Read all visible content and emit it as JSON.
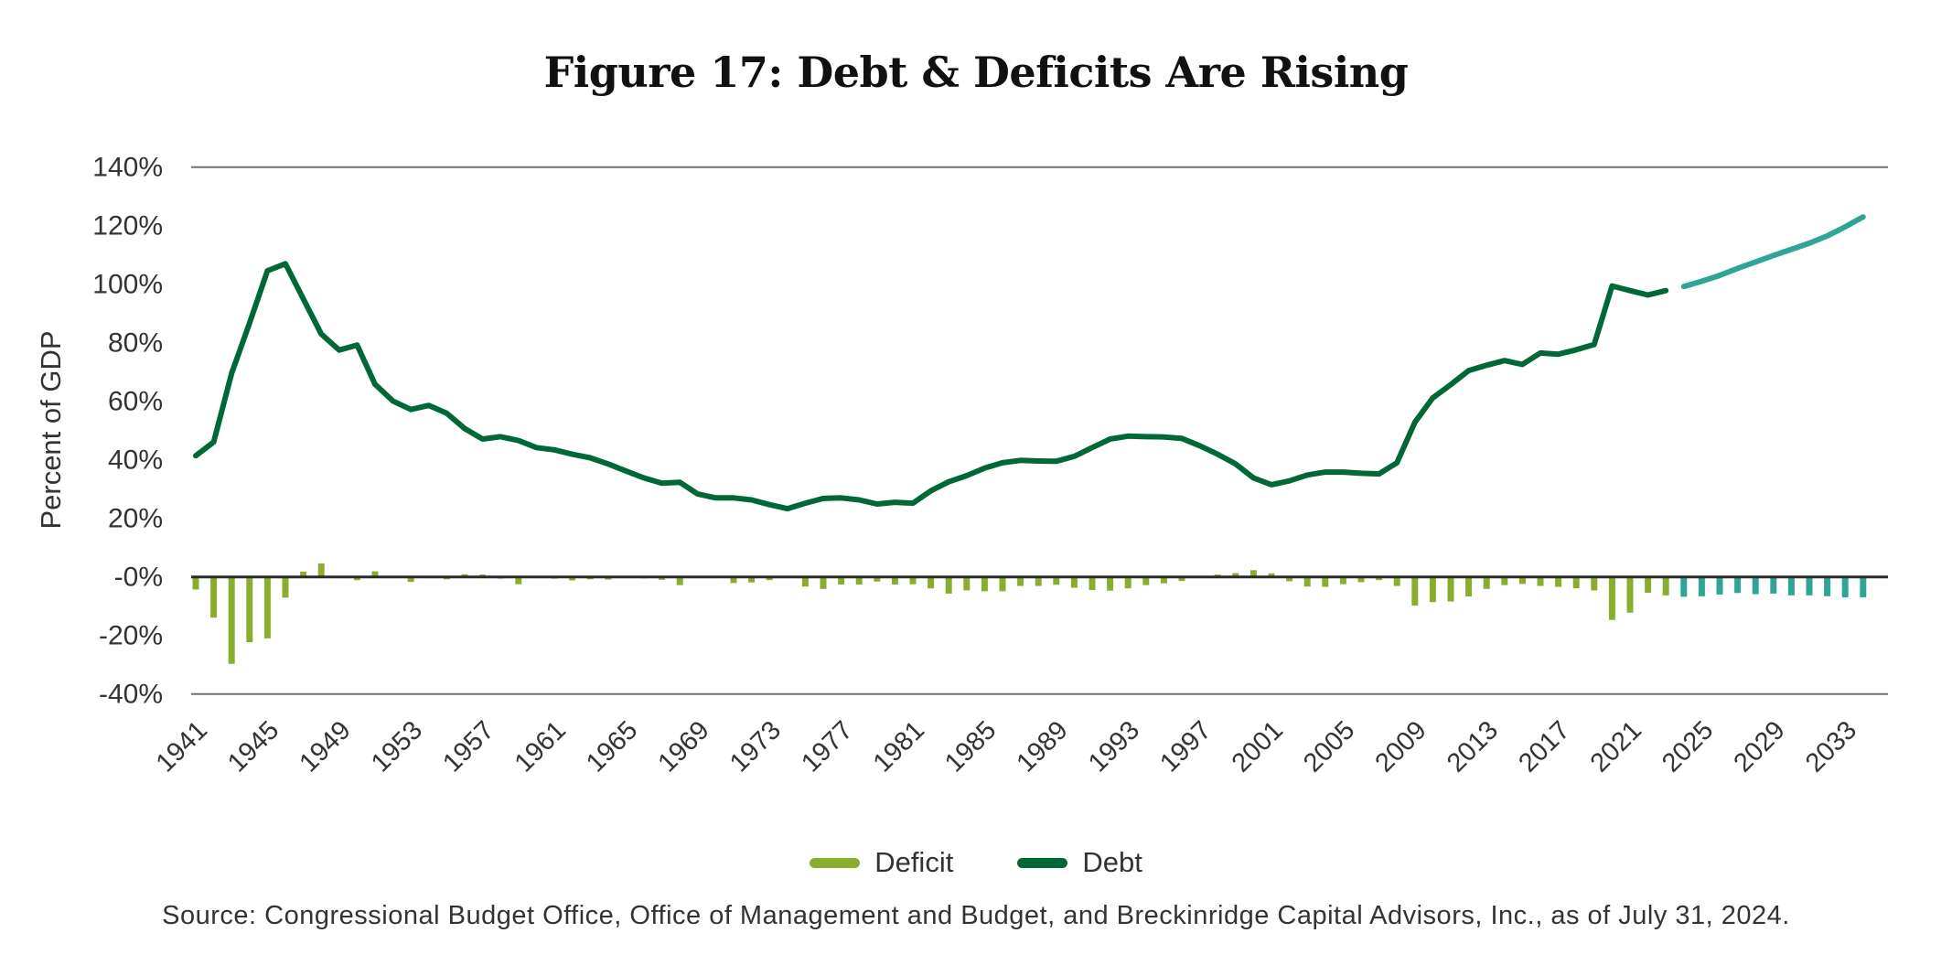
{
  "chart_data": {
    "type": "bar+line",
    "title": "Figure 17: Debt & Deficits Are Rising",
    "xlabel": "",
    "ylabel": "Percent of GDP",
    "ylim": [
      -40,
      140
    ],
    "yticks": [
      140,
      120,
      100,
      80,
      60,
      40,
      20,
      0,
      -20,
      -40
    ],
    "ytick_labels": [
      "140%",
      "120%",
      "100%",
      "80%",
      "60%",
      "40%",
      "20%",
      "-0%",
      "-20%",
      "-40%"
    ],
    "gridlines": [
      140,
      0,
      -40
    ],
    "x_start": 1941,
    "x_end": 2034,
    "xtick_labels": [
      "1941",
      "1945",
      "1949",
      "1953",
      "1957",
      "1961",
      "1965",
      "1969",
      "1973",
      "1977",
      "1981",
      "1985",
      "1989",
      "1993",
      "1997",
      "2001",
      "2005",
      "2009",
      "2013",
      "2017",
      "2021",
      "2025",
      "2029",
      "2033"
    ],
    "projection_start": 2024,
    "legend_position": "bottom-center",
    "series": [
      {
        "name": "Deficit",
        "type": "bar",
        "color": "#8aad2e",
        "projection_color": "#2fa596",
        "values": [
          -4.3,
          -13.9,
          -29.7,
          -22.3,
          -21.0,
          -7.1,
          1.8,
          4.6,
          -0.2,
          -1.1,
          1.9,
          -0.4,
          -1.7,
          -0.3,
          -0.8,
          0.9,
          0.8,
          -0.6,
          -2.5,
          0.1,
          -0.6,
          -1.2,
          -0.8,
          -0.9,
          -0.2,
          -0.5,
          -1.0,
          -2.8,
          0.3,
          -0.3,
          -2.1,
          -1.9,
          -1.1,
          -0.4,
          -3.3,
          -4.1,
          -2.6,
          -2.6,
          -1.6,
          -2.6,
          -2.5,
          -3.9,
          -5.7,
          -4.6,
          -4.9,
          -4.9,
          -3.1,
          -3.1,
          -2.7,
          -3.7,
          -4.5,
          -4.7,
          -3.9,
          -2.8,
          -2.2,
          -1.4,
          -0.3,
          0.8,
          1.3,
          2.3,
          1.2,
          -1.5,
          -3.3,
          -3.4,
          -2.5,
          -1.8,
          -1.1,
          -3.1,
          -9.8,
          -8.6,
          -8.4,
          -6.7,
          -4.1,
          -2.8,
          -2.4,
          -3.1,
          -3.4,
          -3.9,
          -4.6,
          -14.7,
          -12.2,
          -5.4,
          -6.3,
          -6.8,
          -6.6,
          -6.0,
          -5.5,
          -5.9,
          -5.7,
          -6.3,
          -6.3,
          -6.6,
          -7.0,
          -7.0
        ]
      },
      {
        "name": "Debt",
        "type": "line",
        "color": "#006837",
        "projection_color": "#2fa596",
        "values": [
          41.4,
          46.1,
          69.5,
          86.7,
          104.6,
          107.0,
          95.0,
          83.0,
          77.5,
          79.2,
          65.8,
          60.1,
          57.2,
          58.6,
          55.9,
          50.7,
          47.1,
          47.9,
          46.6,
          44.2,
          43.4,
          41.9,
          40.7,
          38.6,
          36.2,
          33.8,
          32.0,
          32.3,
          28.3,
          27.0,
          27.0,
          26.3,
          24.7,
          23.3,
          25.2,
          26.8,
          27.0,
          26.3,
          24.9,
          25.5,
          25.2,
          29.4,
          32.5,
          34.6,
          37.2,
          39.0,
          39.8,
          39.6,
          39.5,
          41.2,
          44.2,
          47.1,
          48.1,
          47.9,
          47.8,
          47.3,
          44.8,
          41.9,
          38.6,
          33.8,
          31.5,
          32.8,
          34.8,
          35.8,
          35.8,
          35.4,
          35.2,
          39.0,
          52.8,
          61.2,
          65.7,
          70.5,
          72.3,
          73.9,
          72.6,
          76.5,
          76.1,
          77.6,
          79.4,
          99.4,
          97.8,
          96.3,
          97.8,
          99.2,
          101.0,
          103.0,
          105.4,
          107.6,
          109.8,
          111.9,
          114.0,
          116.5,
          119.6,
          123.0
        ]
      }
    ]
  },
  "legend": [
    {
      "label": "Deficit",
      "color": "#8aad2e"
    },
    {
      "label": "Debt",
      "color": "#006837"
    }
  ],
  "source": "Source: Congressional Budget Office, Office of Management and Budget, and Breckinridge Capital Advisors, Inc., as of July 31, 2024."
}
